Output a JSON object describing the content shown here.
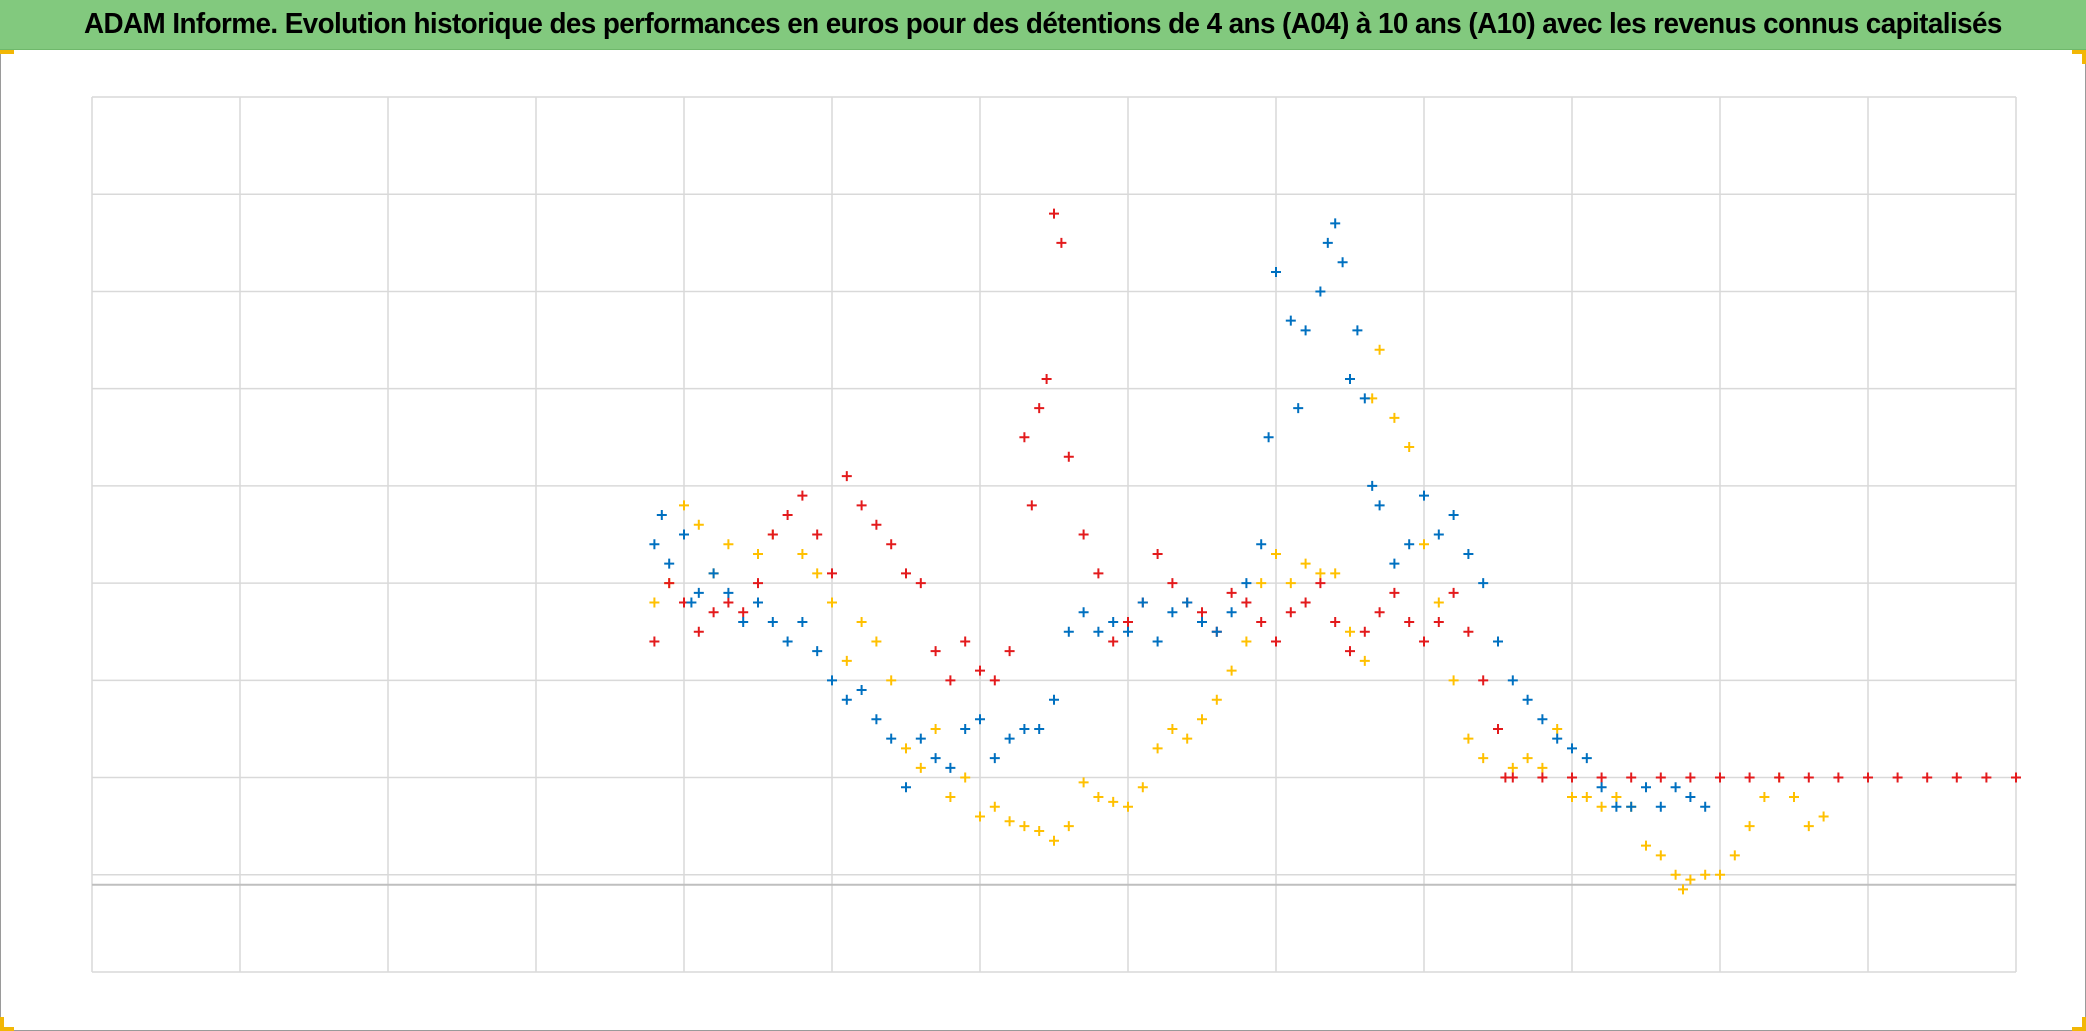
{
  "title": "ADAM Informe. Evolution historique des performances en euros pour des détentions de 4 ans (A04) à 10 ans (A10) avec les revenus connus capitalisés",
  "colors": {
    "title_background": "#82c97e",
    "handle": "#f2b705",
    "grid": "#d9d9d9",
    "zero_line": "#bfbfbf"
  },
  "chart_data": {
    "type": "scatter",
    "marker": "plus",
    "title": "ADAM Informe. Evolution historique des performances en euros pour des détentions de 4 ans (A04) à 10 ans (A10) avec les revenus connus capitalisés",
    "xlabel": "",
    "ylabel": "",
    "grid": true,
    "legend": "none",
    "xlim": [
      0,
      13
    ],
    "ylim": [
      -1,
      8
    ],
    "baseline_y": 0,
    "series": [
      {
        "color": "#ffc000",
        "points": [
          [
            3.8,
            2.8
          ],
          [
            3.9,
            3.0
          ],
          [
            4.0,
            3.8
          ],
          [
            4.1,
            3.6
          ],
          [
            4.2,
            3.1
          ],
          [
            4.3,
            3.4
          ],
          [
            4.5,
            3.3
          ],
          [
            4.6,
            3.5
          ],
          [
            4.8,
            3.3
          ],
          [
            4.9,
            3.1
          ],
          [
            5.0,
            2.8
          ],
          [
            5.1,
            2.2
          ],
          [
            5.2,
            2.6
          ],
          [
            5.3,
            2.4
          ],
          [
            5.4,
            2.0
          ],
          [
            5.5,
            1.3
          ],
          [
            5.6,
            1.1
          ],
          [
            5.7,
            1.5
          ],
          [
            5.8,
            0.8
          ],
          [
            5.9,
            1.0
          ],
          [
            6.0,
            0.6
          ],
          [
            6.1,
            0.7
          ],
          [
            6.2,
            0.55
          ],
          [
            6.3,
            0.5
          ],
          [
            6.4,
            0.45
          ],
          [
            6.5,
            0.35
          ],
          [
            6.6,
            0.5
          ],
          [
            6.7,
            0.95
          ],
          [
            6.8,
            0.8
          ],
          [
            6.9,
            0.75
          ],
          [
            7.0,
            0.7
          ],
          [
            7.1,
            0.9
          ],
          [
            7.2,
            1.3
          ],
          [
            7.3,
            1.5
          ],
          [
            7.4,
            1.4
          ],
          [
            7.5,
            1.6
          ],
          [
            7.6,
            1.8
          ],
          [
            7.7,
            2.1
          ],
          [
            7.8,
            2.4
          ],
          [
            7.9,
            3.0
          ],
          [
            8.0,
            3.3
          ],
          [
            8.1,
            3.0
          ],
          [
            8.2,
            3.2
          ],
          [
            8.3,
            3.1
          ],
          [
            8.4,
            3.1
          ],
          [
            8.5,
            2.5
          ],
          [
            8.6,
            2.2
          ],
          [
            8.65,
            4.9
          ],
          [
            8.7,
            5.4
          ],
          [
            8.8,
            4.7
          ],
          [
            8.9,
            4.4
          ],
          [
            9.0,
            3.4
          ],
          [
            9.1,
            2.8
          ],
          [
            9.2,
            2.0
          ],
          [
            9.3,
            1.4
          ],
          [
            9.4,
            1.2
          ],
          [
            9.5,
            1.5
          ],
          [
            9.6,
            1.1
          ],
          [
            9.7,
            1.2
          ],
          [
            9.8,
            1.1
          ],
          [
            9.9,
            1.5
          ],
          [
            10.0,
            0.8
          ],
          [
            10.1,
            0.8
          ],
          [
            10.2,
            0.7
          ],
          [
            10.3,
            0.8
          ],
          [
            10.4,
            0.7
          ],
          [
            10.5,
            0.3
          ],
          [
            10.6,
            0.2
          ],
          [
            10.7,
            0.0
          ],
          [
            10.75,
            -0.15
          ],
          [
            10.8,
            -0.05
          ],
          [
            10.9,
            0.0
          ],
          [
            11.0,
            0.0
          ],
          [
            11.1,
            0.2
          ],
          [
            11.2,
            0.5
          ],
          [
            11.3,
            0.8
          ],
          [
            11.4,
            1.0
          ],
          [
            11.5,
            0.8
          ],
          [
            11.6,
            0.5
          ],
          [
            11.7,
            0.6
          ]
        ]
      },
      {
        "color": "#e31a1c",
        "points": [
          [
            3.8,
            2.4
          ],
          [
            3.9,
            3.0
          ],
          [
            4.0,
            2.8
          ],
          [
            4.1,
            2.5
          ],
          [
            4.2,
            2.7
          ],
          [
            4.3,
            2.8
          ],
          [
            4.4,
            2.7
          ],
          [
            4.5,
            3.0
          ],
          [
            4.6,
            3.5
          ],
          [
            4.7,
            3.7
          ],
          [
            4.8,
            3.9
          ],
          [
            4.9,
            3.5
          ],
          [
            5.0,
            3.1
          ],
          [
            5.1,
            4.1
          ],
          [
            5.2,
            3.8
          ],
          [
            5.3,
            3.6
          ],
          [
            5.4,
            3.4
          ],
          [
            5.5,
            3.1
          ],
          [
            5.6,
            3.0
          ],
          [
            5.7,
            2.3
          ],
          [
            5.8,
            2.0
          ],
          [
            5.9,
            2.4
          ],
          [
            6.0,
            2.1
          ],
          [
            6.1,
            2.0
          ],
          [
            6.2,
            2.3
          ],
          [
            6.3,
            4.5
          ],
          [
            6.35,
            3.8
          ],
          [
            6.4,
            4.8
          ],
          [
            6.45,
            5.1
          ],
          [
            6.5,
            6.8
          ],
          [
            6.55,
            6.5
          ],
          [
            6.6,
            4.3
          ],
          [
            6.7,
            3.5
          ],
          [
            6.8,
            3.1
          ],
          [
            6.9,
            2.4
          ],
          [
            7.0,
            2.6
          ],
          [
            7.1,
            2.8
          ],
          [
            7.2,
            3.3
          ],
          [
            7.3,
            3.0
          ],
          [
            7.4,
            2.8
          ],
          [
            7.5,
            2.7
          ],
          [
            7.6,
            2.5
          ],
          [
            7.7,
            2.9
          ],
          [
            7.8,
            2.8
          ],
          [
            7.9,
            2.6
          ],
          [
            8.0,
            2.4
          ],
          [
            8.1,
            2.7
          ],
          [
            8.2,
            2.8
          ],
          [
            8.3,
            3.0
          ],
          [
            8.4,
            2.6
          ],
          [
            8.5,
            2.3
          ],
          [
            8.6,
            2.5
          ],
          [
            8.7,
            2.7
          ],
          [
            8.8,
            2.9
          ],
          [
            8.9,
            2.6
          ],
          [
            9.0,
            2.4
          ],
          [
            9.1,
            2.6
          ],
          [
            9.2,
            2.9
          ],
          [
            9.3,
            2.5
          ],
          [
            9.4,
            2.0
          ],
          [
            9.5,
            1.5
          ],
          [
            9.55,
            1.0
          ],
          [
            9.6,
            1.0
          ],
          [
            9.8,
            1.0
          ],
          [
            10.0,
            1.0
          ],
          [
            10.2,
            1.0
          ],
          [
            10.4,
            1.0
          ],
          [
            10.6,
            1.0
          ],
          [
            10.8,
            1.0
          ],
          [
            11.0,
            1.0
          ],
          [
            11.2,
            1.0
          ],
          [
            11.4,
            1.0
          ],
          [
            11.6,
            1.0
          ],
          [
            11.8,
            1.0
          ],
          [
            12.0,
            1.0
          ],
          [
            12.2,
            1.0
          ],
          [
            12.4,
            1.0
          ],
          [
            12.6,
            1.0
          ],
          [
            12.8,
            1.0
          ],
          [
            13.0,
            1.0
          ]
        ]
      },
      {
        "color": "#0070c0",
        "points": [
          [
            3.8,
            3.4
          ],
          [
            3.85,
            3.7
          ],
          [
            3.9,
            3.2
          ],
          [
            4.0,
            3.5
          ],
          [
            4.05,
            2.8
          ],
          [
            4.1,
            2.9
          ],
          [
            4.2,
            3.1
          ],
          [
            4.3,
            2.9
          ],
          [
            4.4,
            2.6
          ],
          [
            4.5,
            2.8
          ],
          [
            4.6,
            2.6
          ],
          [
            4.7,
            2.4
          ],
          [
            4.8,
            2.6
          ],
          [
            4.9,
            2.3
          ],
          [
            5.0,
            2.0
          ],
          [
            5.1,
            1.8
          ],
          [
            5.2,
            1.9
          ],
          [
            5.3,
            1.6
          ],
          [
            5.4,
            1.4
          ],
          [
            5.5,
            0.9
          ],
          [
            5.6,
            1.4
          ],
          [
            5.7,
            1.2
          ],
          [
            5.8,
            1.1
          ],
          [
            5.9,
            1.5
          ],
          [
            6.0,
            1.6
          ],
          [
            6.1,
            1.2
          ],
          [
            6.2,
            1.4
          ],
          [
            6.3,
            1.5
          ],
          [
            6.4,
            1.5
          ],
          [
            6.5,
            1.8
          ],
          [
            6.6,
            2.5
          ],
          [
            6.7,
            2.7
          ],
          [
            6.8,
            2.5
          ],
          [
            6.9,
            2.6
          ],
          [
            7.0,
            2.5
          ],
          [
            7.1,
            2.8
          ],
          [
            7.2,
            2.4
          ],
          [
            7.3,
            2.7
          ],
          [
            7.4,
            2.8
          ],
          [
            7.5,
            2.6
          ],
          [
            7.6,
            2.5
          ],
          [
            7.7,
            2.7
          ],
          [
            7.8,
            3.0
          ],
          [
            7.9,
            3.4
          ],
          [
            7.95,
            4.5
          ],
          [
            8.0,
            6.2
          ],
          [
            8.1,
            5.7
          ],
          [
            8.15,
            4.8
          ],
          [
            8.2,
            5.6
          ],
          [
            8.3,
            6.0
          ],
          [
            8.35,
            6.5
          ],
          [
            8.4,
            6.7
          ],
          [
            8.45,
            6.3
          ],
          [
            8.5,
            5.1
          ],
          [
            8.55,
            5.6
          ],
          [
            8.6,
            4.9
          ],
          [
            8.65,
            4.0
          ],
          [
            8.7,
            3.8
          ],
          [
            8.8,
            3.2
          ],
          [
            8.9,
            3.4
          ],
          [
            9.0,
            3.9
          ],
          [
            9.1,
            3.5
          ],
          [
            9.2,
            3.7
          ],
          [
            9.3,
            3.3
          ],
          [
            9.4,
            3.0
          ],
          [
            9.5,
            2.4
          ],
          [
            9.6,
            2.0
          ],
          [
            9.7,
            1.8
          ],
          [
            9.8,
            1.6
          ],
          [
            9.9,
            1.4
          ],
          [
            10.0,
            1.3
          ],
          [
            10.1,
            1.2
          ],
          [
            10.2,
            0.9
          ],
          [
            10.3,
            0.7
          ],
          [
            10.4,
            0.7
          ],
          [
            10.5,
            0.9
          ],
          [
            10.6,
            0.7
          ],
          [
            10.7,
            0.9
          ],
          [
            10.8,
            0.8
          ],
          [
            10.9,
            0.7
          ]
        ]
      }
    ]
  }
}
